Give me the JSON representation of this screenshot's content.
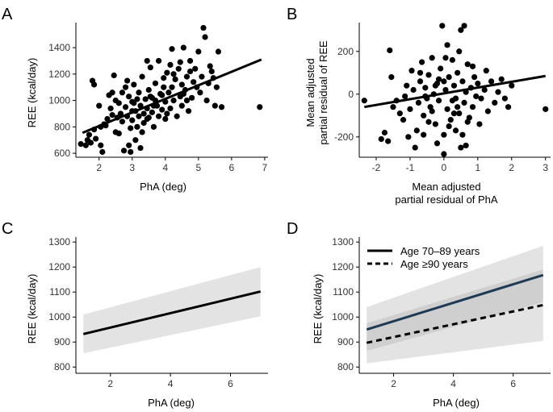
{
  "figure": {
    "panels": [
      "A",
      "B",
      "C",
      "D"
    ]
  },
  "chart_data": [
    {
      "id": "A",
      "type": "scatter",
      "title": "",
      "xlabel": "PhA (deg)",
      "ylabel": "REE (kcal/day)",
      "xlim": [
        1.3,
        7.1
      ],
      "ylim": [
        570,
        1590
      ],
      "xticks": [
        2,
        3,
        4,
        5,
        6,
        7
      ],
      "yticks": [
        600,
        800,
        1000,
        1200,
        1400
      ],
      "points": [
        [
          1.45,
          670
        ],
        [
          1.6,
          660
        ],
        [
          1.65,
          700
        ],
        [
          1.7,
          740
        ],
        [
          1.75,
          680
        ],
        [
          1.8,
          1150
        ],
        [
          1.85,
          1120
        ],
        [
          1.85,
          780
        ],
        [
          1.9,
          710
        ],
        [
          2.0,
          960
        ],
        [
          2.05,
          800
        ],
        [
          2.1,
          610
        ],
        [
          2.15,
          820
        ],
        [
          2.2,
          810
        ],
        [
          2.25,
          860
        ],
        [
          2.3,
          1040
        ],
        [
          2.35,
          940
        ],
        [
          2.4,
          890
        ],
        [
          2.45,
          1190
        ],
        [
          2.5,
          760
        ],
        [
          2.5,
          1000
        ],
        [
          2.55,
          870
        ],
        [
          2.6,
          980
        ],
        [
          2.65,
          900
        ],
        [
          2.7,
          840
        ],
        [
          2.7,
          1060
        ],
        [
          2.75,
          620
        ],
        [
          2.8,
          950
        ],
        [
          2.8,
          1100
        ],
        [
          2.85,
          880
        ],
        [
          2.9,
          660
        ],
        [
          2.9,
          1030
        ],
        [
          2.95,
          790
        ],
        [
          3.0,
          990
        ],
        [
          3.0,
          850
        ],
        [
          3.05,
          1120
        ],
        [
          3.1,
          920
        ],
        [
          3.1,
          700
        ],
        [
          3.15,
          800
        ],
        [
          3.2,
          1060
        ],
        [
          3.2,
          880
        ],
        [
          3.25,
          960
        ],
        [
          3.3,
          1180
        ],
        [
          3.3,
          760
        ],
        [
          3.35,
          830
        ],
        [
          3.4,
          1010
        ],
        [
          3.45,
          940
        ],
        [
          3.5,
          1080
        ],
        [
          3.5,
          870
        ],
        [
          3.55,
          1250
        ],
        [
          3.6,
          910
        ],
        [
          3.6,
          1020
        ],
        [
          3.65,
          800
        ],
        [
          3.7,
          1130
        ],
        [
          3.75,
          960
        ],
        [
          3.8,
          880
        ],
        [
          3.8,
          1300
        ],
        [
          3.85,
          1050
        ],
        [
          3.9,
          930
        ],
        [
          3.95,
          1170
        ],
        [
          4.0,
          990
        ],
        [
          4.0,
          860
        ],
        [
          4.05,
          1210
        ],
        [
          4.1,
          1060
        ],
        [
          4.15,
          940
        ],
        [
          4.2,
          1390
        ],
        [
          4.2,
          1100
        ],
        [
          4.25,
          1000
        ],
        [
          4.3,
          1160
        ],
        [
          4.35,
          880
        ],
        [
          4.4,
          1240
        ],
        [
          4.45,
          1030
        ],
        [
          4.5,
          1120
        ],
        [
          4.5,
          960
        ],
        [
          4.55,
          1400
        ],
        [
          4.6,
          1080
        ],
        [
          4.65,
          1180
        ],
        [
          4.7,
          920
        ],
        [
          4.75,
          1300
        ],
        [
          4.8,
          1020
        ],
        [
          4.85,
          1140
        ],
        [
          4.9,
          1240
        ],
        [
          4.95,
          1100
        ],
        [
          5.0,
          1370
        ],
        [
          5.05,
          1060
        ],
        [
          5.1,
          1180
        ],
        [
          5.15,
          1550
        ],
        [
          5.2,
          1480
        ],
        [
          5.25,
          1000
        ],
        [
          5.3,
          1130
        ],
        [
          5.35,
          1260
        ],
        [
          5.4,
          1220
        ],
        [
          5.45,
          1170
        ],
        [
          5.5,
          960
        ],
        [
          5.55,
          1100
        ],
        [
          5.6,
          1370
        ],
        [
          5.7,
          950
        ],
        [
          6.85,
          950
        ],
        [
          2.05,
          660
        ],
        [
          2.95,
          610
        ],
        [
          3.25,
          640
        ],
        [
          3.45,
          1300
        ],
        [
          3.95,
          1100
        ],
        [
          4.15,
          1270
        ],
        [
          4.45,
          1290
        ],
        [
          4.65,
          1000
        ],
        [
          3.15,
          1010
        ],
        [
          2.6,
          750
        ],
        [
          3.35,
          900
        ],
        [
          3.7,
          1000
        ],
        [
          4.25,
          1200
        ],
        [
          3.05,
          980
        ],
        [
          2.85,
          1150
        ],
        [
          3.55,
          1030
        ],
        [
          3.9,
          1040
        ],
        [
          4.75,
          1220
        ],
        [
          4.05,
          900
        ],
        [
          2.4,
          1060
        ],
        [
          3.65,
          960
        ],
        [
          3.45,
          860
        ],
        [
          3.0,
          920
        ],
        [
          4.55,
          1050
        ]
      ],
      "fit_line": {
        "x": [
          1.5,
          6.9
        ],
        "y": [
          755,
          1310
        ]
      }
    },
    {
      "id": "B",
      "type": "scatter",
      "title": "",
      "xlabel_lines": [
        "Mean adjusted",
        "partial residual of PhA"
      ],
      "ylabel_lines": [
        "Mean adjusted",
        "partial residual of REE"
      ],
      "xlim": [
        -2.5,
        3.15
      ],
      "ylim": [
        -295,
        335
      ],
      "xticks": [
        -2,
        -1,
        0,
        1,
        2,
        3
      ],
      "yticks": [
        -200,
        0,
        200
      ],
      "points": [
        [
          -2.35,
          -30
        ],
        [
          -1.85,
          -210
        ],
        [
          -1.75,
          -180
        ],
        [
          -1.65,
          -220
        ],
        [
          -1.6,
          205
        ],
        [
          -1.55,
          80
        ],
        [
          -1.5,
          -60
        ],
        [
          -1.4,
          -30
        ],
        [
          -1.3,
          -90
        ],
        [
          -1.2,
          -120
        ],
        [
          -1.15,
          -10
        ],
        [
          -1.1,
          40
        ],
        [
          -1.0,
          -70
        ],
        [
          -0.95,
          110
        ],
        [
          -0.9,
          20
        ],
        [
          -0.85,
          -250
        ],
        [
          -0.8,
          -170
        ],
        [
          -0.75,
          -40
        ],
        [
          -0.7,
          60
        ],
        [
          -0.65,
          150
        ],
        [
          -0.6,
          -100
        ],
        [
          -0.55,
          30
        ],
        [
          -0.5,
          -20
        ],
        [
          -0.45,
          90
        ],
        [
          -0.4,
          -60
        ],
        [
          -0.35,
          170
        ],
        [
          -0.3,
          0
        ],
        [
          -0.25,
          -140
        ],
        [
          -0.2,
          50
        ],
        [
          -0.15,
          -30
        ],
        [
          -0.1,
          120
        ],
        [
          -0.05,
          320
        ],
        [
          0.0,
          -280
        ],
        [
          0.0,
          -190
        ],
        [
          0.05,
          20
        ],
        [
          0.1,
          -70
        ],
        [
          0.15,
          80
        ],
        [
          0.2,
          -120
        ],
        [
          0.25,
          160
        ],
        [
          0.3,
          40
        ],
        [
          0.35,
          -20
        ],
        [
          0.4,
          100
        ],
        [
          0.45,
          -90
        ],
        [
          0.5,
          300
        ],
        [
          0.5,
          -250
        ],
        [
          0.55,
          60
        ],
        [
          0.6,
          320
        ],
        [
          0.6,
          -40
        ],
        [
          0.65,
          10
        ],
        [
          0.7,
          140
        ],
        [
          0.75,
          -110
        ],
        [
          0.8,
          30
        ],
        [
          0.85,
          -60
        ],
        [
          0.9,
          80
        ],
        [
          0.95,
          -10
        ],
        [
          1.0,
          50
        ],
        [
          1.1,
          -20
        ],
        [
          1.2,
          20
        ],
        [
          1.3,
          -80
        ],
        [
          1.4,
          60
        ],
        [
          1.5,
          -40
        ],
        [
          1.6,
          10
        ],
        [
          1.7,
          70
        ],
        [
          1.8,
          -20
        ],
        [
          1.9,
          -60
        ],
        [
          2.0,
          40
        ],
        [
          3.0,
          -70
        ],
        [
          -0.6,
          -190
        ],
        [
          -0.2,
          -230
        ],
        [
          0.15,
          -150
        ],
        [
          0.35,
          -170
        ],
        [
          0.45,
          200
        ],
        [
          -0.35,
          -80
        ],
        [
          0.25,
          -30
        ],
        [
          0.05,
          170
        ],
        [
          -0.15,
          70
        ],
        [
          0.7,
          -130
        ],
        [
          1.05,
          -140
        ],
        [
          -1.05,
          -200
        ],
        [
          0.1,
          230
        ],
        [
          -0.45,
          -130
        ],
        [
          0.55,
          -190
        ],
        [
          0.3,
          -90
        ],
        [
          -0.7,
          100
        ],
        [
          0.85,
          130
        ],
        [
          -0.25,
          40
        ],
        [
          0.4,
          -60
        ],
        [
          0.0,
          60
        ],
        [
          1.25,
          110
        ],
        [
          -0.55,
          -10
        ],
        [
          0.65,
          -240
        ]
      ],
      "fit_line": {
        "x": [
          -2.35,
          3.0
        ],
        "y": [
          -60,
          85
        ]
      }
    },
    {
      "id": "C",
      "type": "line",
      "title": "",
      "xlabel": "PhA (deg)",
      "ylabel": "REE (kcal/day)",
      "xlim": [
        0.85,
        7.25
      ],
      "ylim": [
        775,
        1320
      ],
      "xticks": [
        2,
        4,
        6
      ],
      "yticks": [
        800,
        900,
        1000,
        1100,
        1200,
        1300
      ],
      "series": [
        {
          "name": "",
          "x": [
            1.1,
            7.0
          ],
          "y": [
            932,
            1102
          ],
          "ci_low": [
            855,
            1003
          ],
          "ci_high": [
            1010,
            1200
          ]
        }
      ]
    },
    {
      "id": "D",
      "type": "line",
      "title": "",
      "xlabel": "PhA (deg)",
      "ylabel": "REE (kcal/day)",
      "xlim": [
        0.85,
        7.25
      ],
      "ylim": [
        775,
        1320
      ],
      "xticks": [
        2,
        4,
        6
      ],
      "yticks": [
        800,
        900,
        1000,
        1100,
        1200,
        1300
      ],
      "legend": [
        "Age 70–89 years",
        "Age ≥90 years"
      ],
      "series": [
        {
          "name": "Age 70–89 years",
          "style": "solid",
          "color": "#1f3a55",
          "x": [
            1.1,
            7.0
          ],
          "y": [
            950,
            1168
          ],
          "ci_low": [
            865,
            1060
          ],
          "ci_high": [
            1040,
            1285
          ]
        },
        {
          "name": "Age ≥90 years",
          "style": "dashed",
          "color": "#000000",
          "x": [
            1.1,
            7.0
          ],
          "y": [
            897,
            1048
          ],
          "ci_low": [
            815,
            905
          ],
          "ci_high": [
            975,
            1190
          ]
        }
      ]
    }
  ]
}
